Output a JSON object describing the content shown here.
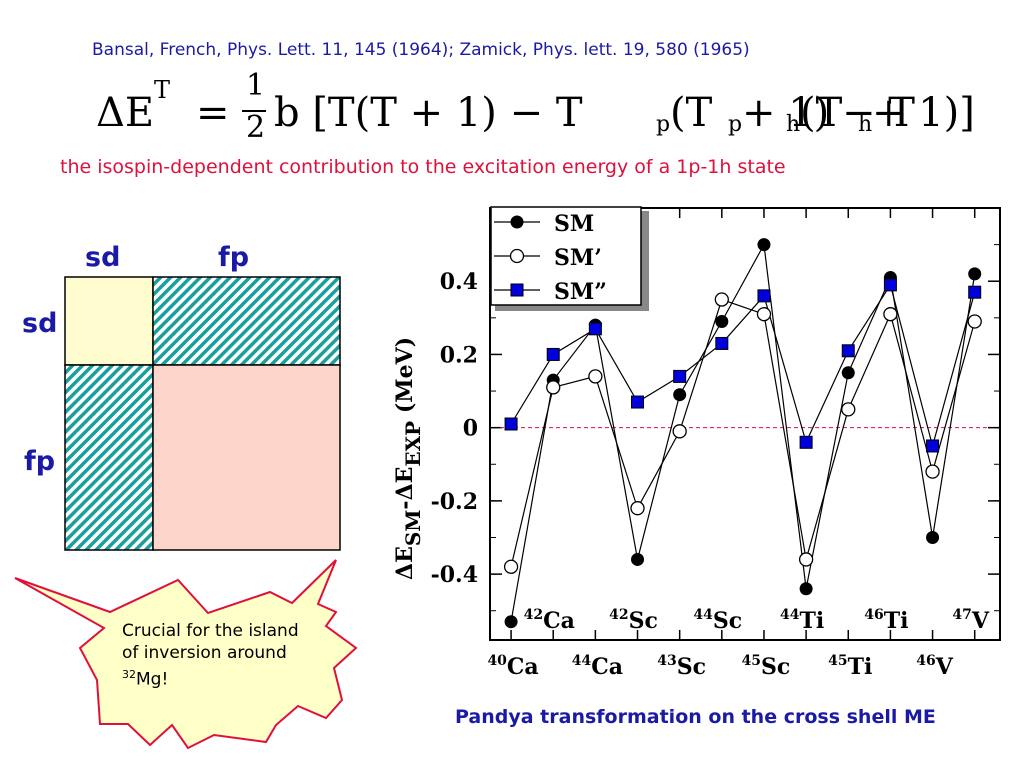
{
  "header": {
    "reference": "Bansal, French, Phys. Lett. 11, 145 (1964); Zamick, Phys. lett. 19, 580 (1965)",
    "formula_parts": [
      "ΔE",
      "T",
      "=",
      "1",
      "2",
      "b [T(T + 1) − T",
      "p",
      "(T",
      "p",
      " + 1) − T",
      "h",
      "(T",
      "h",
      " + 1)]"
    ],
    "caption": "the isospin-dependent contribution to the excitation energy of a 1p-1h state"
  },
  "matrix": {
    "col_labels": [
      "sd",
      "fp"
    ],
    "row_labels": [
      "sd",
      "fp"
    ],
    "colors": {
      "sd_sd": "#fffdd0",
      "fp_fp": "#fdd5cb",
      "hatch_bg": "#ffffff",
      "hatch_line": "#1a9e9e",
      "label": "#1a1aa6"
    }
  },
  "burst": {
    "text_line1": "Crucial for the island",
    "text_line2": "of inversion around",
    "text_sup": "32",
    "text_rest": "Mg!",
    "fill": "#ffffc8",
    "stroke": "#e0103c"
  },
  "footer": "Pandya transformation on the cross shell ME",
  "chart_data": {
    "type": "line",
    "ylabel": "ΔESM-ΔEEXP (MeV)",
    "ylabel_parts": {
      "delta1": "ΔE",
      "sub1": "SM",
      "dash": "-",
      "delta2": "ΔE",
      "sub2": "EXP",
      "unit": " (MeV)"
    },
    "ylim": [
      -0.58,
      0.6
    ],
    "yticks": [
      "0.4",
      "0.2",
      "0",
      "-0.2",
      "-0.4"
    ],
    "ytick_values": [
      0.4,
      0.2,
      0,
      -0.2,
      -0.4
    ],
    "x": [
      1,
      2,
      3,
      4,
      5,
      6,
      7,
      8,
      9,
      10,
      11,
      12
    ],
    "xlim": [
      0.5,
      12.6
    ],
    "bottom_labels": [
      {
        "x": 1,
        "mass": "40",
        "el": "Ca"
      },
      {
        "x": 3,
        "mass": "44",
        "el": "Ca"
      },
      {
        "x": 5,
        "mass": "43",
        "el": "Sc"
      },
      {
        "x": 7,
        "mass": "45",
        "el": "Sc"
      },
      {
        "x": 9,
        "mass": "45",
        "el": "Ti"
      },
      {
        "x": 11,
        "mass": "46",
        "el": "V"
      }
    ],
    "inner_labels": [
      {
        "x": 2,
        "mass": "42",
        "el": "Ca"
      },
      {
        "x": 4,
        "mass": "42",
        "el": "Sc"
      },
      {
        "x": 6,
        "mass": "44",
        "el": "Sc"
      },
      {
        "x": 8,
        "mass": "44",
        "el": "Ti"
      },
      {
        "x": 10,
        "mass": "46",
        "el": "Ti"
      },
      {
        "x": 12,
        "mass": "47",
        "el": "V"
      }
    ],
    "series": [
      {
        "name": "SM",
        "marker": "filled-circle",
        "values": [
          -0.53,
          0.13,
          0.28,
          -0.36,
          0.09,
          0.29,
          0.5,
          -0.44,
          0.15,
          0.41,
          -0.3,
          0.42
        ]
      },
      {
        "name": "SM’",
        "marker": "open-circle",
        "values": [
          -0.38,
          0.11,
          0.14,
          -0.22,
          -0.01,
          0.35,
          0.31,
          -0.36,
          0.05,
          0.31,
          -0.12,
          0.29
        ]
      },
      {
        "name": "SM”",
        "marker": "blue-square",
        "values": [
          0.01,
          0.2,
          0.27,
          0.07,
          0.14,
          0.23,
          0.36,
          -0.04,
          0.21,
          0.39,
          -0.05,
          0.37
        ]
      }
    ],
    "zero_line": {
      "style": "dashed",
      "color": "#e0103c"
    },
    "legend": "top-left",
    "series_colors": {
      "marker_blue": "#0000dd"
    }
  }
}
